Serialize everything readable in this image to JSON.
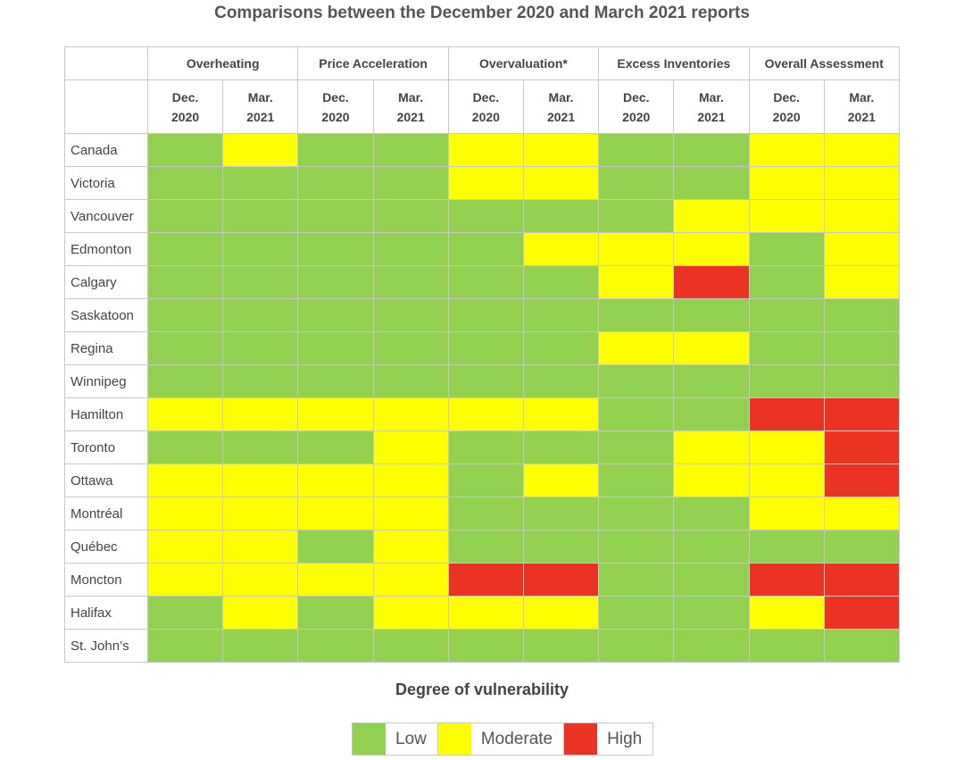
{
  "chart_data": {
    "type": "heatmap",
    "title": "Comparisons between the December 2020 and March 2021 reports",
    "categories": [
      "Overheating",
      "Price Acceleration",
      "Overvaluation*",
      "Excess Inventories",
      "Overall Assessment"
    ],
    "periods": [
      {
        "line1": "Dec.",
        "line2": "2020"
      },
      {
        "line1": "Mar.",
        "line2": "2021"
      }
    ],
    "rows": [
      {
        "city": "Canada",
        "values": [
          "Low",
          "Moderate",
          "Low",
          "Low",
          "Moderate",
          "Moderate",
          "Low",
          "Low",
          "Moderate",
          "Moderate"
        ]
      },
      {
        "city": "Victoria",
        "values": [
          "Low",
          "Low",
          "Low",
          "Low",
          "Moderate",
          "Moderate",
          "Low",
          "Low",
          "Moderate",
          "Moderate"
        ]
      },
      {
        "city": "Vancouver",
        "values": [
          "Low",
          "Low",
          "Low",
          "Low",
          "Low",
          "Low",
          "Low",
          "Moderate",
          "Moderate",
          "Moderate"
        ]
      },
      {
        "city": "Edmonton",
        "values": [
          "Low",
          "Low",
          "Low",
          "Low",
          "Low",
          "Moderate",
          "Moderate",
          "Moderate",
          "Low",
          "Moderate"
        ]
      },
      {
        "city": "Calgary",
        "values": [
          "Low",
          "Low",
          "Low",
          "Low",
          "Low",
          "Low",
          "Moderate",
          "High",
          "Low",
          "Moderate"
        ]
      },
      {
        "city": "Saskatoon",
        "values": [
          "Low",
          "Low",
          "Low",
          "Low",
          "Low",
          "Low",
          "Low",
          "Low",
          "Low",
          "Low"
        ]
      },
      {
        "city": "Regina",
        "values": [
          "Low",
          "Low",
          "Low",
          "Low",
          "Low",
          "Low",
          "Moderate",
          "Moderate",
          "Low",
          "Low"
        ]
      },
      {
        "city": "Winnipeg",
        "values": [
          "Low",
          "Low",
          "Low",
          "Low",
          "Low",
          "Low",
          "Low",
          "Low",
          "Low",
          "Low"
        ]
      },
      {
        "city": "Hamilton",
        "values": [
          "Moderate",
          "Moderate",
          "Moderate",
          "Moderate",
          "Moderate",
          "Moderate",
          "Low",
          "Low",
          "High",
          "High"
        ]
      },
      {
        "city": "Toronto",
        "values": [
          "Low",
          "Low",
          "Low",
          "Moderate",
          "Low",
          "Low",
          "Low",
          "Moderate",
          "Moderate",
          "High"
        ]
      },
      {
        "city": "Ottawa",
        "values": [
          "Moderate",
          "Moderate",
          "Moderate",
          "Moderate",
          "Low",
          "Moderate",
          "Low",
          "Moderate",
          "Moderate",
          "High"
        ]
      },
      {
        "city": "Montréal",
        "values": [
          "Moderate",
          "Moderate",
          "Moderate",
          "Moderate",
          "Low",
          "Low",
          "Low",
          "Low",
          "Moderate",
          "Moderate"
        ]
      },
      {
        "city": "Québec",
        "values": [
          "Moderate",
          "Moderate",
          "Low",
          "Moderate",
          "Low",
          "Low",
          "Low",
          "Low",
          "Low",
          "Low"
        ]
      },
      {
        "city": "Moncton",
        "values": [
          "Moderate",
          "Moderate",
          "Moderate",
          "Moderate",
          "High",
          "High",
          "Low",
          "Low",
          "High",
          "High"
        ]
      },
      {
        "city": "Halifax",
        "values": [
          "Low",
          "Moderate",
          "Low",
          "Moderate",
          "Moderate",
          "Moderate",
          "Low",
          "Low",
          "Moderate",
          "High"
        ]
      },
      {
        "city": "St. John’s",
        "values": [
          "Low",
          "Low",
          "Low",
          "Low",
          "Low",
          "Low",
          "Low",
          "Low",
          "Low",
          "Low"
        ]
      }
    ],
    "legend": {
      "title": "Degree of vulnerability",
      "items": [
        {
          "label": "Low",
          "color": "#92d050"
        },
        {
          "label": "Moderate",
          "color": "#ffff00"
        },
        {
          "label": "High",
          "color": "#ea3323"
        }
      ],
      "placement": "bottom-center"
    }
  }
}
